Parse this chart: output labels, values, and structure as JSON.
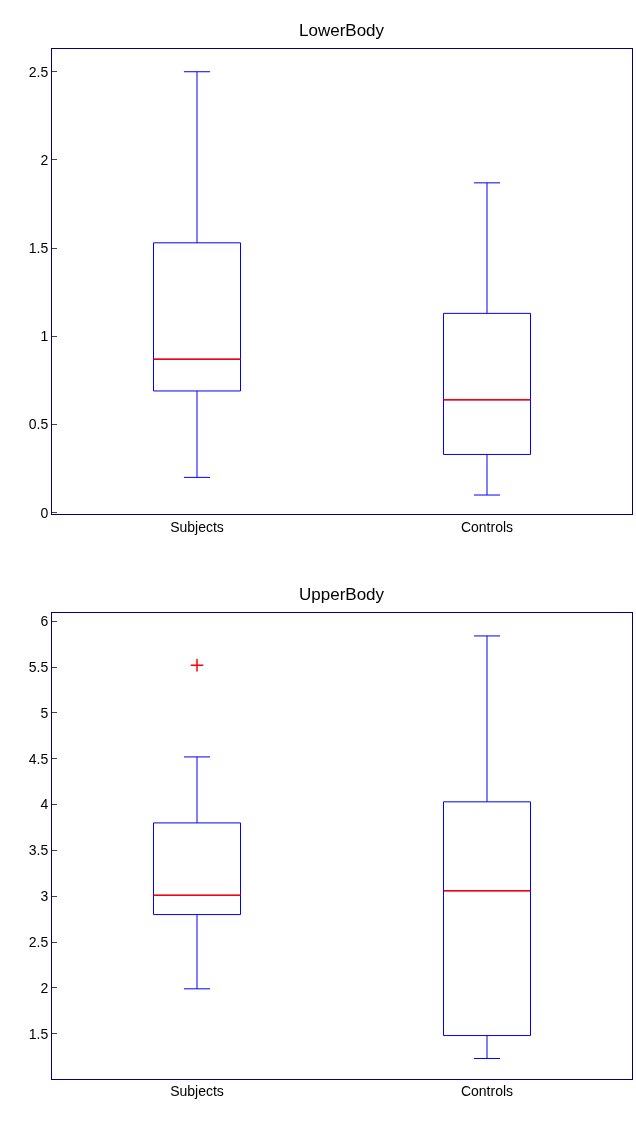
{
  "chart_data": [
    {
      "type": "box",
      "title": "LowerBody",
      "categories": [
        "Subjects",
        "Controls"
      ],
      "series": [
        {
          "color": "#0000ff",
          "boxes": [
            {
              "low": 0.2,
              "q1": 0.69,
              "median": 0.87,
              "q3": 1.53,
              "high": 2.5
            },
            {
              "low": 0.1,
              "q1": 0.33,
              "median": 0.64,
              "q3": 1.13,
              "high": 1.87
            }
          ]
        }
      ],
      "ylim": [
        -0.01,
        2.63
      ],
      "yticks": [
        0,
        0.5,
        1,
        1.5,
        2,
        2.5
      ]
    },
    {
      "type": "box",
      "title": "UpperBody",
      "categories": [
        "Subjects",
        "Controls"
      ],
      "series": [
        {
          "color": "#0000ff",
          "boxes": [
            {
              "low": 1.99,
              "q1": 2.8,
              "median": 3.01,
              "q3": 3.8,
              "high": 4.52,
              "outliers": [
                5.52
              ]
            },
            {
              "low": 1.23,
              "q1": 1.48,
              "median": 3.06,
              "q3": 4.03,
              "high": 5.84
            }
          ]
        }
      ],
      "ylim": [
        1.01,
        6.09
      ],
      "yticks": [
        1.5,
        2,
        2.5,
        3,
        3.5,
        4,
        4.5,
        5,
        5.5,
        6
      ]
    }
  ]
}
